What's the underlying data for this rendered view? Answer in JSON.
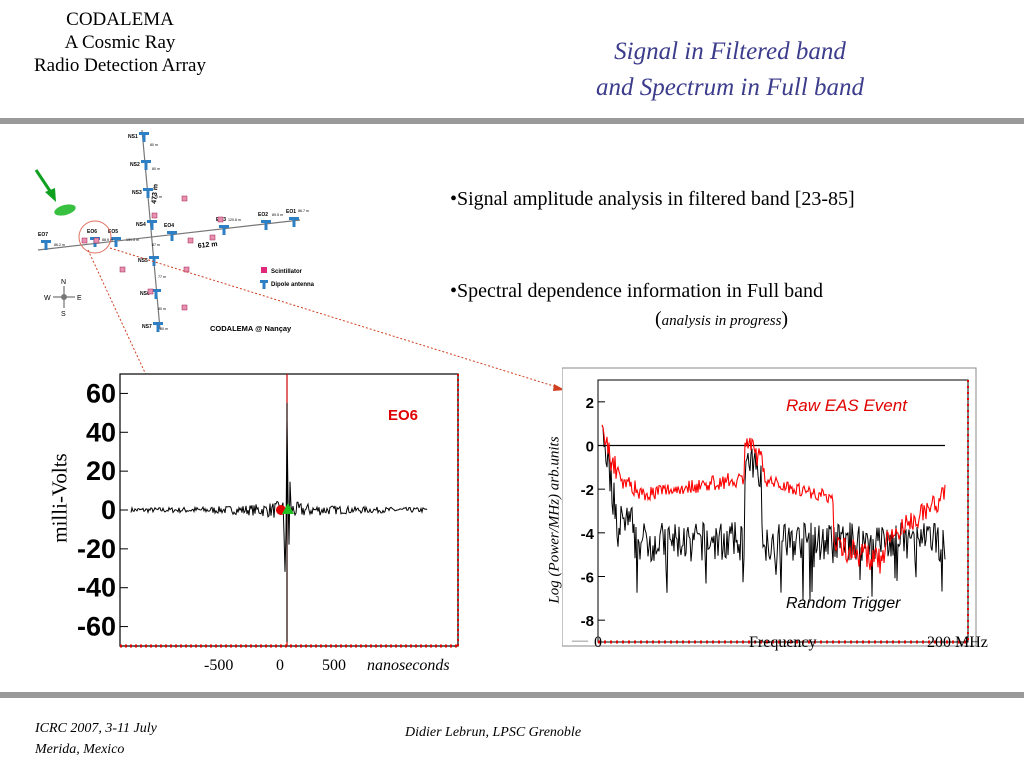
{
  "header": {
    "left_lines": [
      "CODALEMA",
      "A Cosmic Ray",
      "Radio Detection Array"
    ],
    "title_lines": [
      "Signal in Filtered band",
      "and Spectrum in Full band"
    ]
  },
  "bullets": {
    "b1": "•Signal amplitude analysis in filtered band [23-85]",
    "b2": "•Spectral dependence information in Full band",
    "b2_note": "analysis in progress"
  },
  "array_map": {
    "caption": "CODALEMA @ Nançay",
    "stations": [
      "NS1",
      "NS2",
      "NS3",
      "NS4",
      "NS5",
      "NS6",
      "NS7",
      "EO1",
      "EO2",
      "EO3",
      "EO4",
      "EO5",
      "EO6",
      "EO7"
    ],
    "distances": [
      "80 m",
      "80 m",
      "75 m",
      "87 m",
      "77 m",
      "80 m",
      "80 m",
      "86.7 m",
      "89.5 m",
      "120.6 m",
      "131.5 m",
      "88.9 m",
      "86.2 m"
    ],
    "length_ns": "473 m",
    "length_eo": "612 m",
    "legend": [
      "Scintillator",
      "Dipole antenna"
    ],
    "compass": [
      "N",
      "S",
      "E",
      "W"
    ]
  },
  "signal_plot": {
    "ylabel": "milli-Volts",
    "yticks": [
      "60",
      "40",
      "20",
      "0",
      "-20",
      "-40",
      "-60"
    ],
    "xticks": [
      "-500",
      "0",
      "500"
    ],
    "xunit": "nanoseconds",
    "station_label": "EO6",
    "ylim": [
      -70,
      70
    ]
  },
  "spectrum_plot": {
    "ylabel": "Log (Power/MHz) arb.units",
    "yticks": [
      "2",
      "0",
      "-2",
      "-4",
      "-6",
      "-8"
    ],
    "xticks": [
      "0",
      "Frequency",
      "200 MHz"
    ],
    "legend_red": "Raw EAS Event",
    "legend_black": "Random Trigger",
    "ylim": [
      -9,
      3
    ]
  },
  "footer": {
    "left_lines": [
      "ICRC 2007, 3-11 July",
      "Merida, Mexico"
    ],
    "center": "Didier Lebrun, LPSC Grenoble"
  },
  "colors": {
    "red_trace": "#ff0000",
    "title": "#3c3c8c",
    "rule": "#9a9a9a",
    "dipole": "#2e7fc4",
    "scint": "#e02878"
  }
}
